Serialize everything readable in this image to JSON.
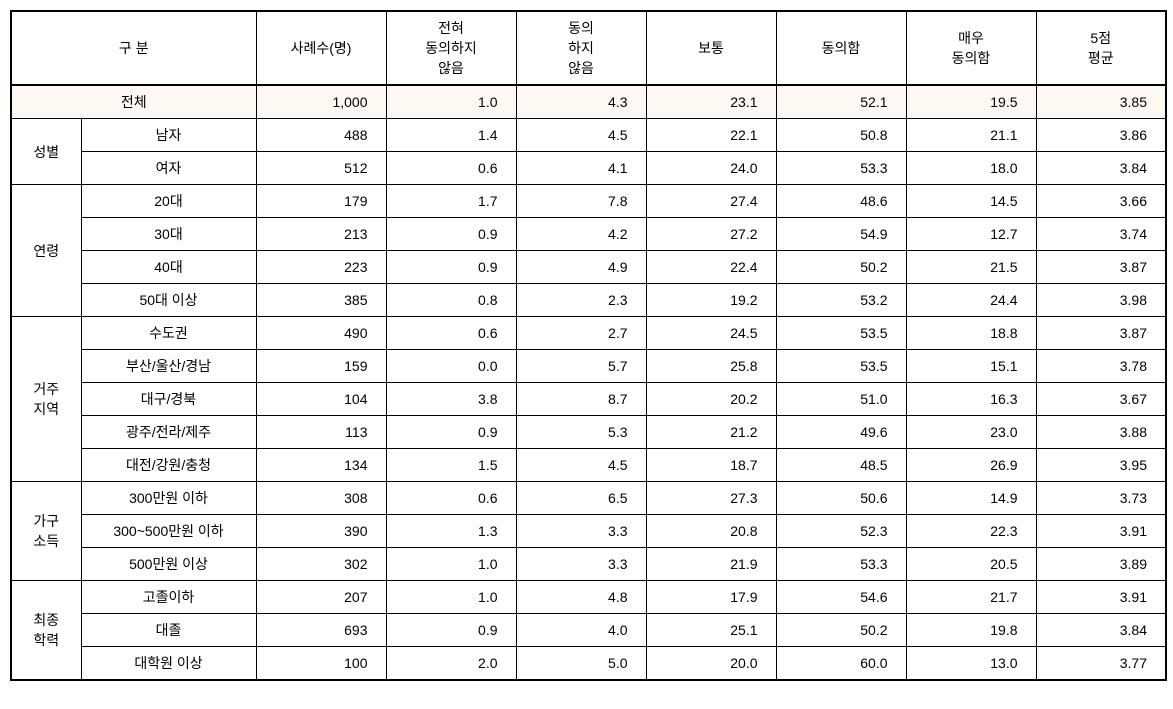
{
  "header": {
    "category": "구 분",
    "sample": "사례수(명)",
    "col1": "전혀\n동의하지\n않음",
    "col2": "동의\n하지\n않음",
    "col3": "보통",
    "col4": "동의함",
    "col5": "매우\n동의함",
    "col6": "5점\n평균"
  },
  "total": {
    "label": "전체",
    "sample": "1,000",
    "v1": "1.0",
    "v2": "4.3",
    "v3": "23.1",
    "v4": "52.1",
    "v5": "19.5",
    "v6": "3.85"
  },
  "groups": [
    {
      "label": "성별",
      "rows": [
        {
          "label": "남자",
          "sample": "488",
          "v1": "1.4",
          "v2": "4.5",
          "v3": "22.1",
          "v4": "50.8",
          "v5": "21.1",
          "v6": "3.86"
        },
        {
          "label": "여자",
          "sample": "512",
          "v1": "0.6",
          "v2": "4.1",
          "v3": "24.0",
          "v4": "53.3",
          "v5": "18.0",
          "v6": "3.84"
        }
      ]
    },
    {
      "label": "연령",
      "rows": [
        {
          "label": "20대",
          "sample": "179",
          "v1": "1.7",
          "v2": "7.8",
          "v3": "27.4",
          "v4": "48.6",
          "v5": "14.5",
          "v6": "3.66"
        },
        {
          "label": "30대",
          "sample": "213",
          "v1": "0.9",
          "v2": "4.2",
          "v3": "27.2",
          "v4": "54.9",
          "v5": "12.7",
          "v6": "3.74"
        },
        {
          "label": "40대",
          "sample": "223",
          "v1": "0.9",
          "v2": "4.9",
          "v3": "22.4",
          "v4": "50.2",
          "v5": "21.5",
          "v6": "3.87"
        },
        {
          "label": "50대 이상",
          "sample": "385",
          "v1": "0.8",
          "v2": "2.3",
          "v3": "19.2",
          "v4": "53.2",
          "v5": "24.4",
          "v6": "3.98"
        }
      ]
    },
    {
      "label": "거주\n지역",
      "rows": [
        {
          "label": "수도권",
          "sample": "490",
          "v1": "0.6",
          "v2": "2.7",
          "v3": "24.5",
          "v4": "53.5",
          "v5": "18.8",
          "v6": "3.87"
        },
        {
          "label": "부산/울산/경남",
          "sample": "159",
          "v1": "0.0",
          "v2": "5.7",
          "v3": "25.8",
          "v4": "53.5",
          "v5": "15.1",
          "v6": "3.78"
        },
        {
          "label": "대구/경북",
          "sample": "104",
          "v1": "3.8",
          "v2": "8.7",
          "v3": "20.2",
          "v4": "51.0",
          "v5": "16.3",
          "v6": "3.67"
        },
        {
          "label": "광주/전라/제주",
          "sample": "113",
          "v1": "0.9",
          "v2": "5.3",
          "v3": "21.2",
          "v4": "49.6",
          "v5": "23.0",
          "v6": "3.88"
        },
        {
          "label": "대전/강원/충청",
          "sample": "134",
          "v1": "1.5",
          "v2": "4.5",
          "v3": "18.7",
          "v4": "48.5",
          "v5": "26.9",
          "v6": "3.95"
        }
      ]
    },
    {
      "label": "가구\n소득",
      "rows": [
        {
          "label": "300만원 이하",
          "sample": "308",
          "v1": "0.6",
          "v2": "6.5",
          "v3": "27.3",
          "v4": "50.6",
          "v5": "14.9",
          "v6": "3.73"
        },
        {
          "label": "300~500만원 이하",
          "sample": "390",
          "v1": "1.3",
          "v2": "3.3",
          "v3": "20.8",
          "v4": "52.3",
          "v5": "22.3",
          "v6": "3.91"
        },
        {
          "label": "500만원 이상",
          "sample": "302",
          "v1": "1.0",
          "v2": "3.3",
          "v3": "21.9",
          "v4": "53.3",
          "v5": "20.5",
          "v6": "3.89"
        }
      ]
    },
    {
      "label": "최종\n학력",
      "rows": [
        {
          "label": "고졸이하",
          "sample": "207",
          "v1": "1.0",
          "v2": "4.8",
          "v3": "17.9",
          "v4": "54.6",
          "v5": "21.7",
          "v6": "3.91"
        },
        {
          "label": "대졸",
          "sample": "693",
          "v1": "0.9",
          "v2": "4.0",
          "v3": "25.1",
          "v4": "50.2",
          "v5": "19.8",
          "v6": "3.84"
        },
        {
          "label": "대학원 이상",
          "sample": "100",
          "v1": "2.0",
          "v2": "5.0",
          "v3": "20.0",
          "v4": "60.0",
          "v5": "13.0",
          "v6": "3.77"
        }
      ]
    }
  ]
}
